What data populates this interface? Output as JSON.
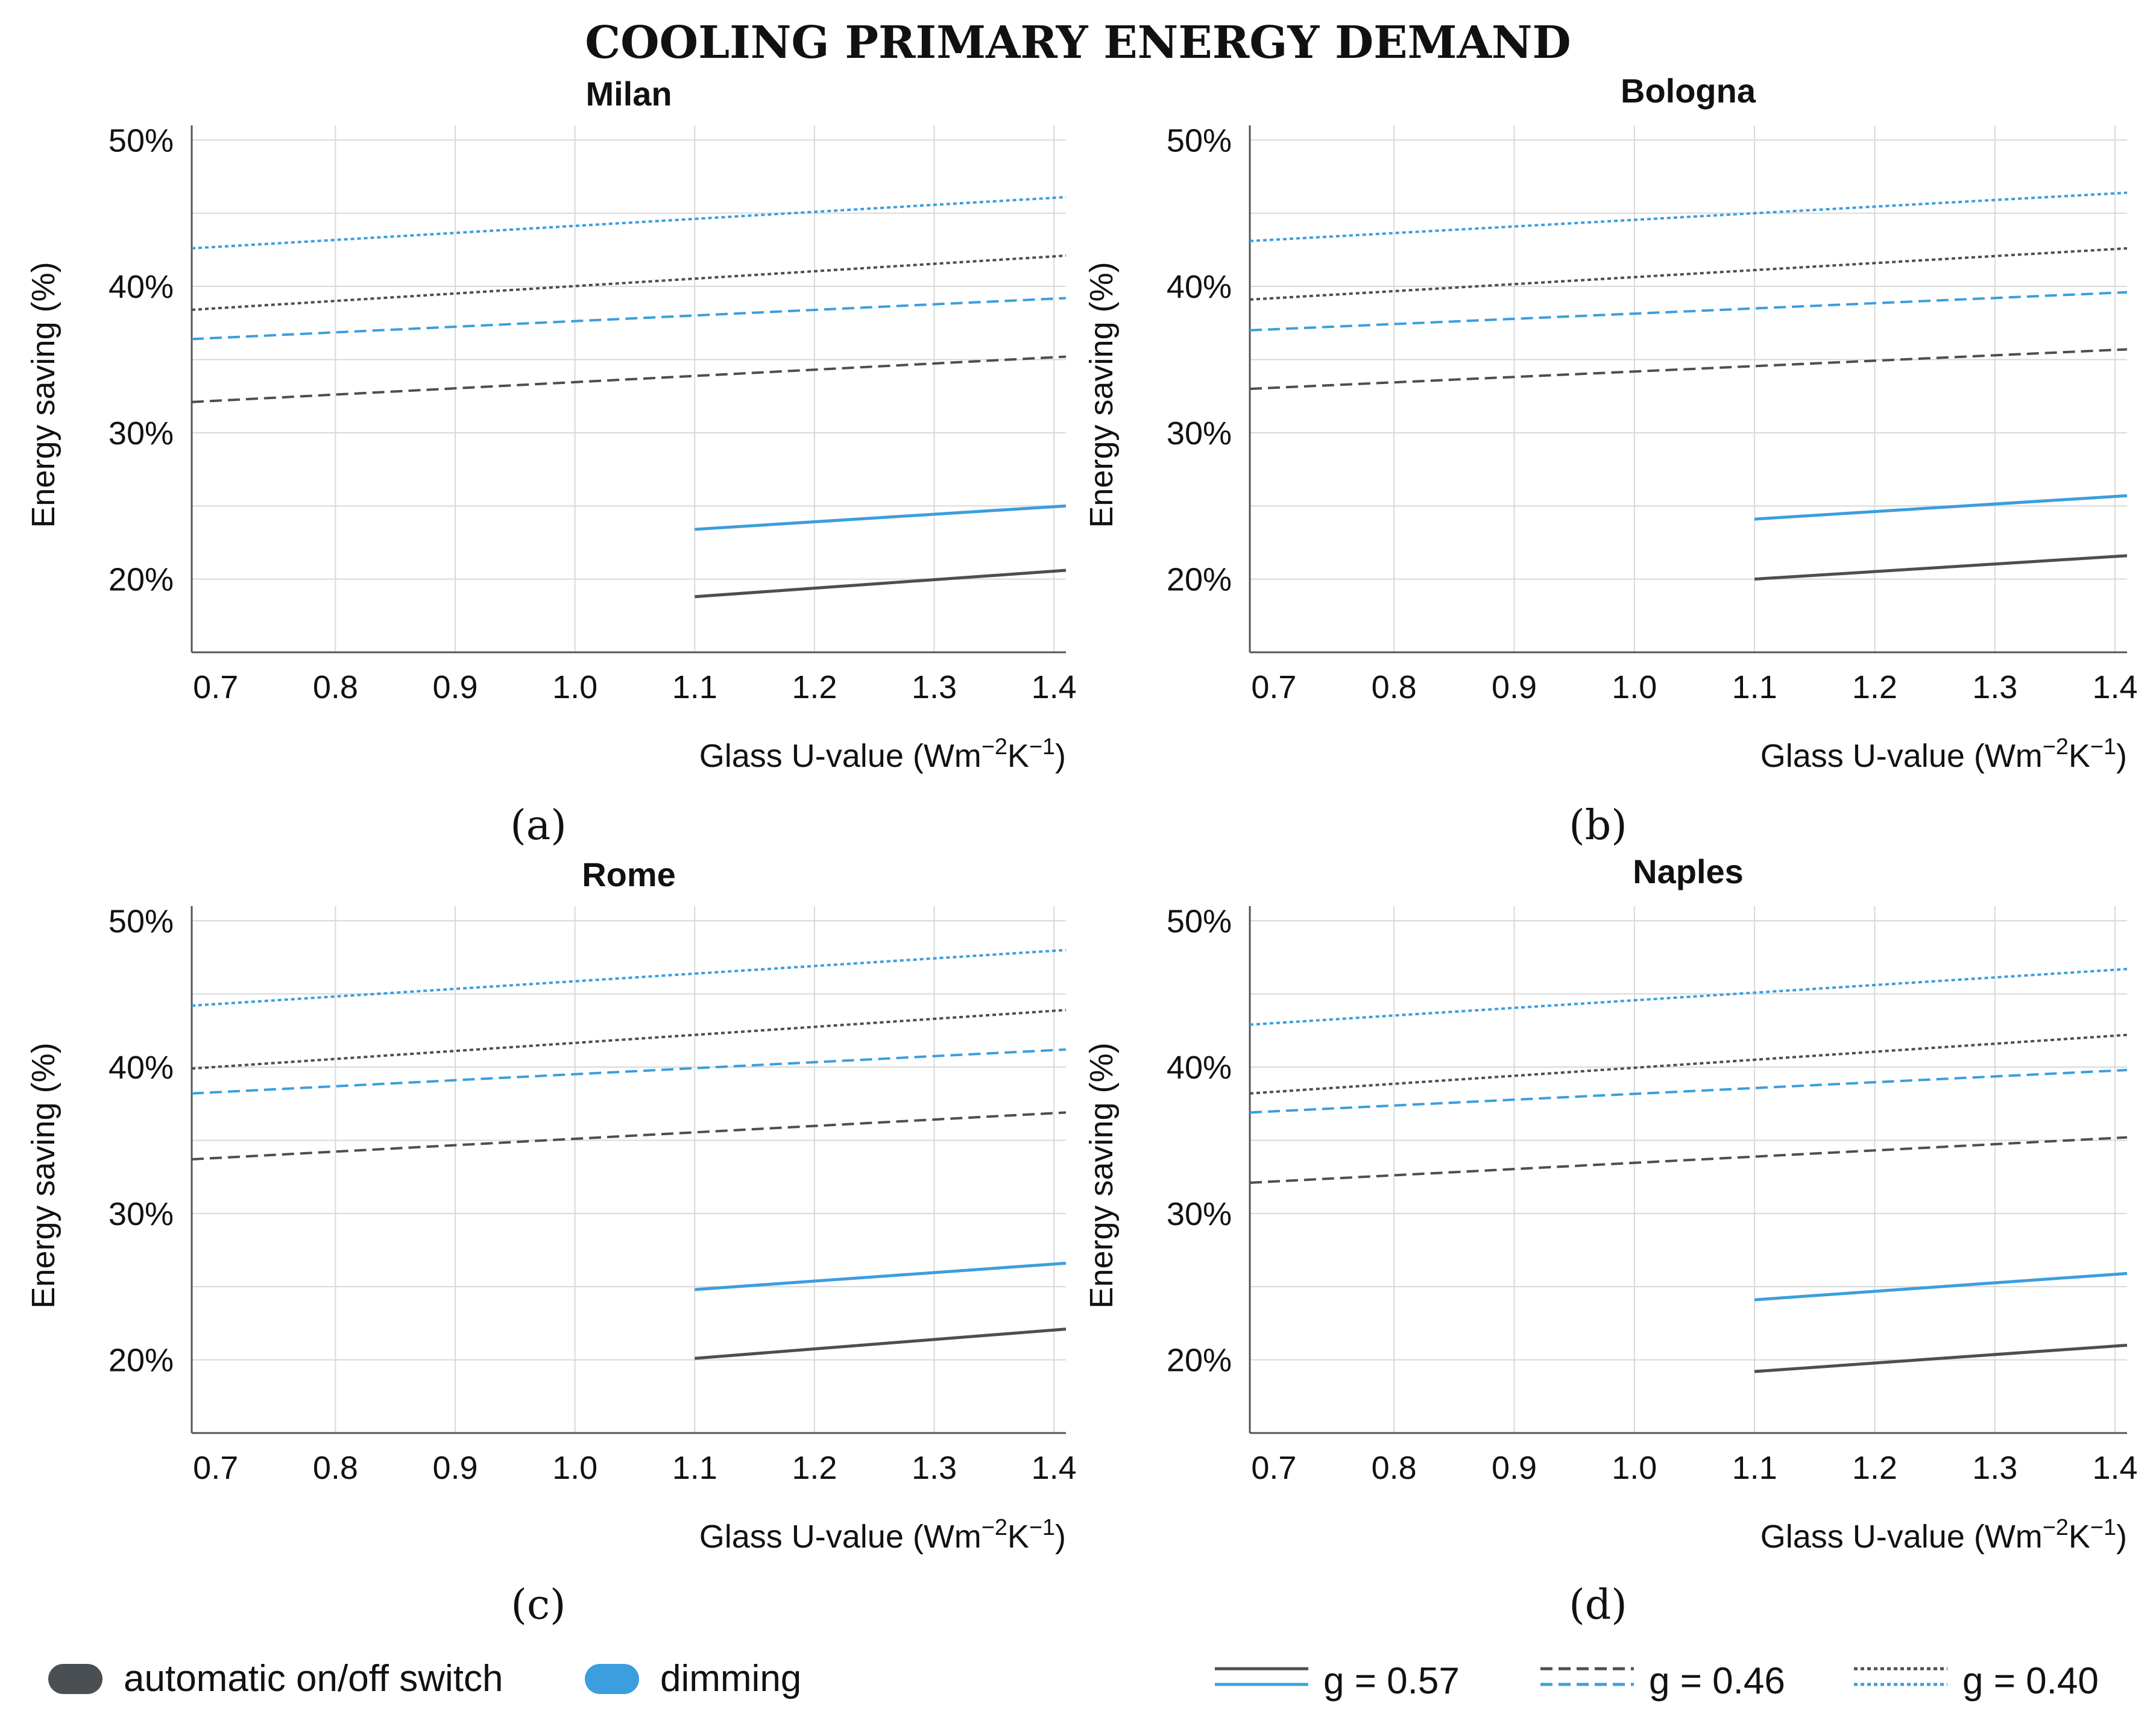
{
  "figure_title": "COOLING PRIMARY ENERGY DEMAND",
  "colors": {
    "switch": "#4a4f53",
    "dimming": "#3b9ede",
    "grid": "#d9d9d9",
    "axis": "#555555",
    "text": "#111111"
  },
  "chart_data": [
    {
      "type": "line",
      "panel": "(a)",
      "title": "Milan",
      "xlabel": "Glass U-value (Wm-2K-1)",
      "ylabel": "Energy saving (%)",
      "xlim": [
        0.68,
        1.41
      ],
      "ylim": [
        15,
        51
      ],
      "x_ticks": [
        "0.7",
        "0.8",
        "0.9",
        "1.0",
        "1.1",
        "1.2",
        "1.3",
        "1.4"
      ],
      "y_ticks": [
        "20%",
        "30%",
        "40%",
        "50%"
      ],
      "series": [
        {
          "name": "automatic on/off switch, g = 0.57",
          "control": "switch",
          "g": "0.57",
          "x": [
            1.1,
            1.41
          ],
          "values": [
            18.8,
            20.6
          ]
        },
        {
          "name": "automatic on/off switch, g = 0.46",
          "control": "switch",
          "g": "0.46",
          "x": [
            0.68,
            1.41
          ],
          "values": [
            32.1,
            35.2
          ]
        },
        {
          "name": "automatic on/off switch, g = 0.40",
          "control": "switch",
          "g": "0.40",
          "x": [
            0.68,
            1.41
          ],
          "values": [
            38.4,
            42.1
          ]
        },
        {
          "name": "dimming, g = 0.57",
          "control": "dimming",
          "g": "0.57",
          "x": [
            1.1,
            1.41
          ],
          "values": [
            23.4,
            25.0
          ]
        },
        {
          "name": "dimming, g = 0.46",
          "control": "dimming",
          "g": "0.46",
          "x": [
            0.68,
            1.41
          ],
          "values": [
            36.4,
            39.2
          ]
        },
        {
          "name": "dimming, g = 0.40",
          "control": "dimming",
          "g": "0.40",
          "x": [
            0.68,
            1.41
          ],
          "values": [
            42.6,
            46.1
          ]
        }
      ]
    },
    {
      "type": "line",
      "panel": "(b)",
      "title": "Bologna",
      "xlabel": "Glass U-value (Wm-2K-1)",
      "ylabel": "Energy saving (%)",
      "xlim": [
        0.68,
        1.41
      ],
      "ylim": [
        15,
        51
      ],
      "x_ticks": [
        "0.7",
        "0.8",
        "0.9",
        "1.0",
        "1.1",
        "1.2",
        "1.3",
        "1.4"
      ],
      "y_ticks": [
        "20%",
        "30%",
        "40%",
        "50%"
      ],
      "series": [
        {
          "name": "automatic on/off switch, g = 0.57",
          "control": "switch",
          "g": "0.57",
          "x": [
            1.1,
            1.41
          ],
          "values": [
            20.0,
            21.6
          ]
        },
        {
          "name": "automatic on/off switch, g = 0.46",
          "control": "switch",
          "g": "0.46",
          "x": [
            0.68,
            1.41
          ],
          "values": [
            33.0,
            35.7
          ]
        },
        {
          "name": "automatic on/off switch, g = 0.40",
          "control": "switch",
          "g": "0.40",
          "x": [
            0.68,
            1.41
          ],
          "values": [
            39.1,
            42.6
          ]
        },
        {
          "name": "dimming, g = 0.57",
          "control": "dimming",
          "g": "0.57",
          "x": [
            1.1,
            1.41
          ],
          "values": [
            24.1,
            25.7
          ]
        },
        {
          "name": "dimming, g = 0.46",
          "control": "dimming",
          "g": "0.46",
          "x": [
            0.68,
            1.41
          ],
          "values": [
            37.0,
            39.6
          ]
        },
        {
          "name": "dimming, g = 0.40",
          "control": "dimming",
          "g": "0.40",
          "x": [
            0.68,
            1.41
          ],
          "values": [
            43.1,
            46.4
          ]
        }
      ]
    },
    {
      "type": "line",
      "panel": "(c)",
      "title": "Rome",
      "xlabel": "Glass U-value (Wm-2K-1)",
      "ylabel": "Energy saving (%)",
      "xlim": [
        0.68,
        1.41
      ],
      "ylim": [
        15,
        51
      ],
      "x_ticks": [
        "0.7",
        "0.8",
        "0.9",
        "1.0",
        "1.1",
        "1.2",
        "1.3",
        "1.4"
      ],
      "y_ticks": [
        "20%",
        "30%",
        "40%",
        "50%"
      ],
      "series": [
        {
          "name": "automatic on/off switch, g = 0.57",
          "control": "switch",
          "g": "0.57",
          "x": [
            1.1,
            1.41
          ],
          "values": [
            20.1,
            22.1
          ]
        },
        {
          "name": "automatic on/off switch, g = 0.46",
          "control": "switch",
          "g": "0.46",
          "x": [
            0.68,
            1.41
          ],
          "values": [
            33.7,
            36.9
          ]
        },
        {
          "name": "automatic on/off switch, g = 0.40",
          "control": "switch",
          "g": "0.40",
          "x": [
            0.68,
            1.41
          ],
          "values": [
            39.9,
            43.9
          ]
        },
        {
          "name": "dimming, g = 0.57",
          "control": "dimming",
          "g": "0.57",
          "x": [
            1.1,
            1.41
          ],
          "values": [
            24.8,
            26.6
          ]
        },
        {
          "name": "dimming, g = 0.46",
          "control": "dimming",
          "g": "0.46",
          "x": [
            0.68,
            1.41
          ],
          "values": [
            38.2,
            41.2
          ]
        },
        {
          "name": "dimming, g = 0.40",
          "control": "dimming",
          "g": "0.40",
          "x": [
            0.68,
            1.41
          ],
          "values": [
            44.2,
            48.0
          ]
        }
      ]
    },
    {
      "type": "line",
      "panel": "(d)",
      "title": "Naples",
      "xlabel": "Glass U-value (Wm-2K-1)",
      "ylabel": "Energy saving (%)",
      "xlim": [
        0.68,
        1.41
      ],
      "ylim": [
        15,
        51
      ],
      "x_ticks": [
        "0.7",
        "0.8",
        "0.9",
        "1.0",
        "1.1",
        "1.2",
        "1.3",
        "1.4"
      ],
      "y_ticks": [
        "20%",
        "30%",
        "40%",
        "50%"
      ],
      "series": [
        {
          "name": "automatic on/off switch, g = 0.57",
          "control": "switch",
          "g": "0.57",
          "x": [
            1.1,
            1.41
          ],
          "values": [
            19.2,
            21.0
          ]
        },
        {
          "name": "automatic on/off switch, g = 0.46",
          "control": "switch",
          "g": "0.46",
          "x": [
            0.68,
            1.41
          ],
          "values": [
            32.1,
            35.2
          ]
        },
        {
          "name": "automatic on/off switch, g = 0.40",
          "control": "switch",
          "g": "0.40",
          "x": [
            0.68,
            1.41
          ],
          "values": [
            38.2,
            42.2
          ]
        },
        {
          "name": "dimming, g = 0.57",
          "control": "dimming",
          "g": "0.57",
          "x": [
            1.1,
            1.41
          ],
          "values": [
            24.1,
            25.9
          ]
        },
        {
          "name": "dimming, g = 0.46",
          "control": "dimming",
          "g": "0.46",
          "x": [
            0.68,
            1.41
          ],
          "values": [
            36.9,
            39.8
          ]
        },
        {
          "name": "dimming, g = 0.40",
          "control": "dimming",
          "g": "0.40",
          "x": [
            0.68,
            1.41
          ],
          "values": [
            42.9,
            46.7
          ]
        }
      ]
    }
  ],
  "legend": {
    "controls": [
      {
        "label": "automatic on/off switch",
        "color": "#4a4f53"
      },
      {
        "label": "dimming",
        "color": "#3b9ede"
      }
    ],
    "glass": [
      {
        "label": "g = 0.57",
        "style": "solid"
      },
      {
        "label": "g = 0.46",
        "style": "dashed"
      },
      {
        "label": "g = 0.40",
        "style": "dotted"
      }
    ]
  }
}
